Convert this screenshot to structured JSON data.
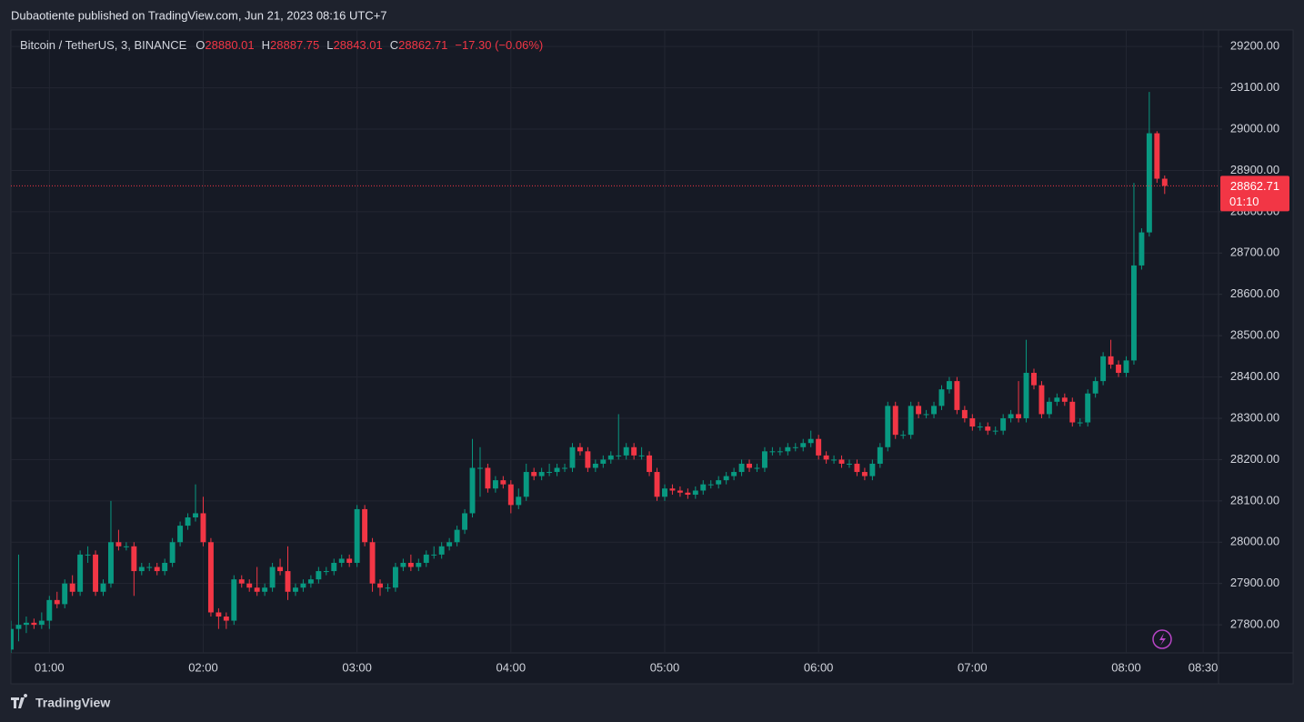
{
  "header": "Dubaotiente published on TradingView.com, Jun 21, 2023 08:16 UTC+7",
  "footer": "TradingView",
  "chart_data": {
    "type": "candlestick",
    "symbol": "Bitcoin / TetherUS, 3, BINANCE",
    "legend_labels": [
      "O",
      "H",
      "L",
      "C"
    ],
    "change": "−17.30 (−0.06%)",
    "countdown": "01:10",
    "up_color": "#089981",
    "down_color": "#f23645",
    "grid": true,
    "x": [
      "00:45",
      "00:48",
      "00:51",
      "00:54",
      "00:57",
      "01:00",
      "01:03",
      "01:06",
      "01:09",
      "01:12",
      "01:15",
      "01:18",
      "01:21",
      "01:24",
      "01:27",
      "01:30",
      "01:33",
      "01:36",
      "01:39",
      "01:42",
      "01:45",
      "01:48",
      "01:51",
      "01:54",
      "01:57",
      "02:00",
      "02:03",
      "02:06",
      "02:09",
      "02:12",
      "02:15",
      "02:18",
      "02:21",
      "02:24",
      "02:27",
      "02:30",
      "02:33",
      "02:36",
      "02:39",
      "02:42",
      "02:45",
      "02:48",
      "02:51",
      "02:54",
      "02:57",
      "03:00",
      "03:03",
      "03:06",
      "03:09",
      "03:12",
      "03:15",
      "03:18",
      "03:21",
      "03:24",
      "03:27",
      "03:30",
      "03:33",
      "03:36",
      "03:39",
      "03:42",
      "03:45",
      "03:48",
      "03:51",
      "03:54",
      "03:57",
      "04:00",
      "04:03",
      "04:06",
      "04:09",
      "04:12",
      "04:15",
      "04:18",
      "04:21",
      "04:24",
      "04:27",
      "04:30",
      "04:33",
      "04:36",
      "04:39",
      "04:42",
      "04:45",
      "04:48",
      "04:51",
      "04:54",
      "04:57",
      "05:00",
      "05:03",
      "05:06",
      "05:09",
      "05:12",
      "05:15",
      "05:18",
      "05:21",
      "05:24",
      "05:27",
      "05:30",
      "05:33",
      "05:36",
      "05:39",
      "05:42",
      "05:45",
      "05:48",
      "05:51",
      "05:54",
      "05:57",
      "06:00",
      "06:03",
      "06:06",
      "06:09",
      "06:12",
      "06:15",
      "06:18",
      "06:21",
      "06:24",
      "06:27",
      "06:30",
      "06:33",
      "06:36",
      "06:39",
      "06:42",
      "06:45",
      "06:48",
      "06:51",
      "06:54",
      "06:57",
      "07:00",
      "07:03",
      "07:06",
      "07:09",
      "07:12",
      "07:15",
      "07:18",
      "07:21",
      "07:24",
      "07:27",
      "07:30",
      "07:33",
      "07:36",
      "07:39",
      "07:42",
      "07:45",
      "07:48",
      "07:51",
      "07:54",
      "07:57",
      "08:00",
      "08:03",
      "08:06",
      "08:09",
      "08:12",
      "08:15"
    ],
    "open": [
      27740,
      27790,
      27800,
      27805,
      27800,
      27810,
      27860,
      27850,
      27900,
      27880,
      27970,
      27970,
      27880,
      27900,
      28000,
      27990,
      27990,
      27930,
      27940,
      27940,
      27930,
      27950,
      28000,
      28040,
      28060,
      28070,
      28000,
      27830,
      27820,
      27810,
      27910,
      27900,
      27890,
      27880,
      27890,
      27940,
      27930,
      27880,
      27890,
      27900,
      27910,
      27930,
      27930,
      27950,
      27960,
      27950,
      28080,
      28000,
      27900,
      27890,
      27890,
      27940,
      27950,
      27940,
      27950,
      27970,
      27970,
      27990,
      28000,
      28030,
      28070,
      28180,
      28180,
      28130,
      28150,
      28140,
      28090,
      28110,
      28170,
      28160,
      28170,
      28170,
      28180,
      28180,
      28230,
      28220,
      28180,
      28190,
      28200,
      28210,
      28210,
      28230,
      28210,
      28210,
      28170,
      28110,
      28130,
      28125,
      28120,
      28115,
      28125,
      28140,
      28140,
      28150,
      28160,
      28170,
      28190,
      28180,
      28180,
      28220,
      28220,
      28220,
      28230,
      28230,
      28240,
      28250,
      28210,
      28200,
      28200,
      28190,
      28190,
      28170,
      28160,
      28190,
      28230,
      28330,
      28260,
      28260,
      28330,
      28310,
      28310,
      28330,
      28370,
      28390,
      28320,
      28300,
      28280,
      28280,
      28270,
      28270,
      28300,
      28310,
      28300,
      28410,
      28380,
      28310,
      28340,
      28350,
      28340,
      28290,
      28290,
      28360,
      28390,
      28450,
      28430,
      28410,
      28440,
      28670,
      28750,
      28990,
      28880.01
    ],
    "high": [
      27810,
      27970,
      27820,
      27815,
      27830,
      27870,
      27880,
      27910,
      27920,
      27980,
      27990,
      27980,
      27910,
      28100,
      28030,
      28000,
      28000,
      27950,
      27950,
      27950,
      27960,
      28010,
      28050,
      28070,
      28140,
      28110,
      28010,
      27840,
      27830,
      27920,
      27920,
      27910,
      27940,
      27900,
      27950,
      27960,
      27990,
      27900,
      27910,
      27920,
      27940,
      27940,
      27960,
      27970,
      27970,
      28090,
      28090,
      28010,
      27910,
      27900,
      27950,
      27960,
      27970,
      27960,
      27980,
      27990,
      28000,
      28010,
      28040,
      28080,
      28250,
      28230,
      28190,
      28160,
      28160,
      28150,
      28130,
      28190,
      28180,
      28180,
      28190,
      28190,
      28190,
      28240,
      28240,
      28230,
      28200,
      28210,
      28220,
      28310,
      28240,
      28240,
      28230,
      28220,
      28180,
      28140,
      28140,
      28135,
      28130,
      28135,
      28150,
      28150,
      28160,
      28170,
      28180,
      28200,
      28200,
      28190,
      28230,
      28230,
      28230,
      28240,
      28240,
      28250,
      28270,
      28260,
      28220,
      28210,
      28210,
      28200,
      28200,
      28180,
      28200,
      28240,
      28340,
      28340,
      28270,
      28340,
      28340,
      28320,
      28340,
      28380,
      28400,
      28400,
      28330,
      28310,
      28290,
      28290,
      28280,
      28310,
      28320,
      28390,
      28490,
      28420,
      28390,
      28350,
      28360,
      28360,
      28350,
      28300,
      28370,
      28400,
      28460,
      28490,
      28440,
      28450,
      28870,
      28760,
      29090,
      28995,
      28887.75
    ],
    "low": [
      27720,
      27760,
      27780,
      27790,
      27790,
      27790,
      27840,
      27840,
      27870,
      27870,
      27950,
      27870,
      27870,
      27890,
      27980,
      27980,
      27870,
      27920,
      27930,
      27920,
      27920,
      27940,
      27990,
      28030,
      28050,
      27990,
      27820,
      27790,
      27790,
      27800,
      27890,
      27880,
      27870,
      27870,
      27880,
      27920,
      27860,
      27870,
      27880,
      27890,
      27900,
      27920,
      27920,
      27940,
      27940,
      27940,
      27990,
      27880,
      27870,
      27880,
      27880,
      27930,
      27930,
      27930,
      27940,
      27960,
      27960,
      27980,
      27990,
      28020,
      28060,
      28110,
      28120,
      28120,
      28130,
      28070,
      28080,
      28100,
      28150,
      28150,
      28160,
      28160,
      28170,
      28170,
      28210,
      28170,
      28170,
      28180,
      28190,
      28200,
      28200,
      28200,
      28200,
      28160,
      28100,
      28100,
      28115,
      28110,
      28105,
      28105,
      28115,
      28130,
      28130,
      28140,
      28150,
      28160,
      28170,
      28170,
      28170,
      28210,
      28210,
      28210,
      28220,
      28220,
      28230,
      28200,
      28190,
      28190,
      28180,
      28180,
      28160,
      28150,
      28150,
      28180,
      28220,
      28250,
      28250,
      28250,
      28300,
      28300,
      28300,
      28320,
      28360,
      28310,
      28290,
      28270,
      28270,
      28260,
      28260,
      28260,
      28290,
      28290,
      28290,
      28370,
      28300,
      28300,
      28330,
      28330,
      28280,
      28280,
      28280,
      28350,
      28380,
      28420,
      28400,
      28400,
      28430,
      28660,
      28740,
      28870,
      28843.01
    ],
    "close": [
      27790,
      27800,
      27805,
      27800,
      27810,
      27860,
      27850,
      27900,
      27880,
      27970,
      27970,
      27880,
      27900,
      28000,
      27990,
      27990,
      27930,
      27940,
      27940,
      27930,
      27950,
      28000,
      28040,
      28060,
      28070,
      28000,
      27830,
      27820,
      27810,
      27910,
      27900,
      27890,
      27880,
      27890,
      27940,
      27930,
      27880,
      27890,
      27900,
      27910,
      27930,
      27930,
      27950,
      27960,
      27950,
      28080,
      28000,
      27900,
      27890,
      27890,
      27940,
      27950,
      27940,
      27950,
      27970,
      27970,
      27990,
      28000,
      28030,
      28070,
      28180,
      28180,
      28130,
      28150,
      28140,
      28090,
      28110,
      28170,
      28160,
      28170,
      28170,
      28180,
      28180,
      28230,
      28220,
      28180,
      28190,
      28200,
      28210,
      28210,
      28230,
      28210,
      28210,
      28170,
      28110,
      28130,
      28125,
      28120,
      28115,
      28125,
      28140,
      28140,
      28150,
      28160,
      28170,
      28190,
      28180,
      28180,
      28220,
      28220,
      28220,
      28230,
      28230,
      28240,
      28250,
      28210,
      28200,
      28200,
      28190,
      28190,
      28170,
      28160,
      28190,
      28230,
      28330,
      28260,
      28260,
      28330,
      28310,
      28310,
      28330,
      28370,
      28390,
      28320,
      28300,
      28280,
      28280,
      28270,
      28270,
      28300,
      28310,
      28300,
      28410,
      28380,
      28310,
      28340,
      28350,
      28340,
      28290,
      28290,
      28360,
      28390,
      28450,
      28430,
      28410,
      28440,
      28670,
      28750,
      28990,
      28880.01,
      28862.71
    ],
    "xlim": [
      "00:45",
      "08:36"
    ],
    "xticks": [
      "01:00",
      "02:00",
      "03:00",
      "04:00",
      "05:00",
      "06:00",
      "07:00",
      "08:00",
      "08:30"
    ],
    "ylim": [
      27732,
      29240
    ],
    "yticks": [
      {
        "value": 27800,
        "label": "27800.00"
      },
      {
        "value": 27900,
        "label": "27900.00"
      },
      {
        "value": 28000,
        "label": "28000.00"
      },
      {
        "value": 28100,
        "label": "28100.00"
      },
      {
        "value": 28200,
        "label": "28200.00"
      },
      {
        "value": 28300,
        "label": "28300.00"
      },
      {
        "value": 28400,
        "label": "28400.00"
      },
      {
        "value": 28500,
        "label": "28500.00"
      },
      {
        "value": 28600,
        "label": "28600.00"
      },
      {
        "value": 28700,
        "label": "28700.00"
      },
      {
        "value": 28800,
        "label": "28800.00"
      },
      {
        "value": 28900,
        "label": "28900.00"
      },
      {
        "value": 29000,
        "label": "29000.00"
      },
      {
        "value": 29100,
        "label": "29100.00"
      },
      {
        "value": 29200,
        "label": "29200.00"
      }
    ]
  }
}
